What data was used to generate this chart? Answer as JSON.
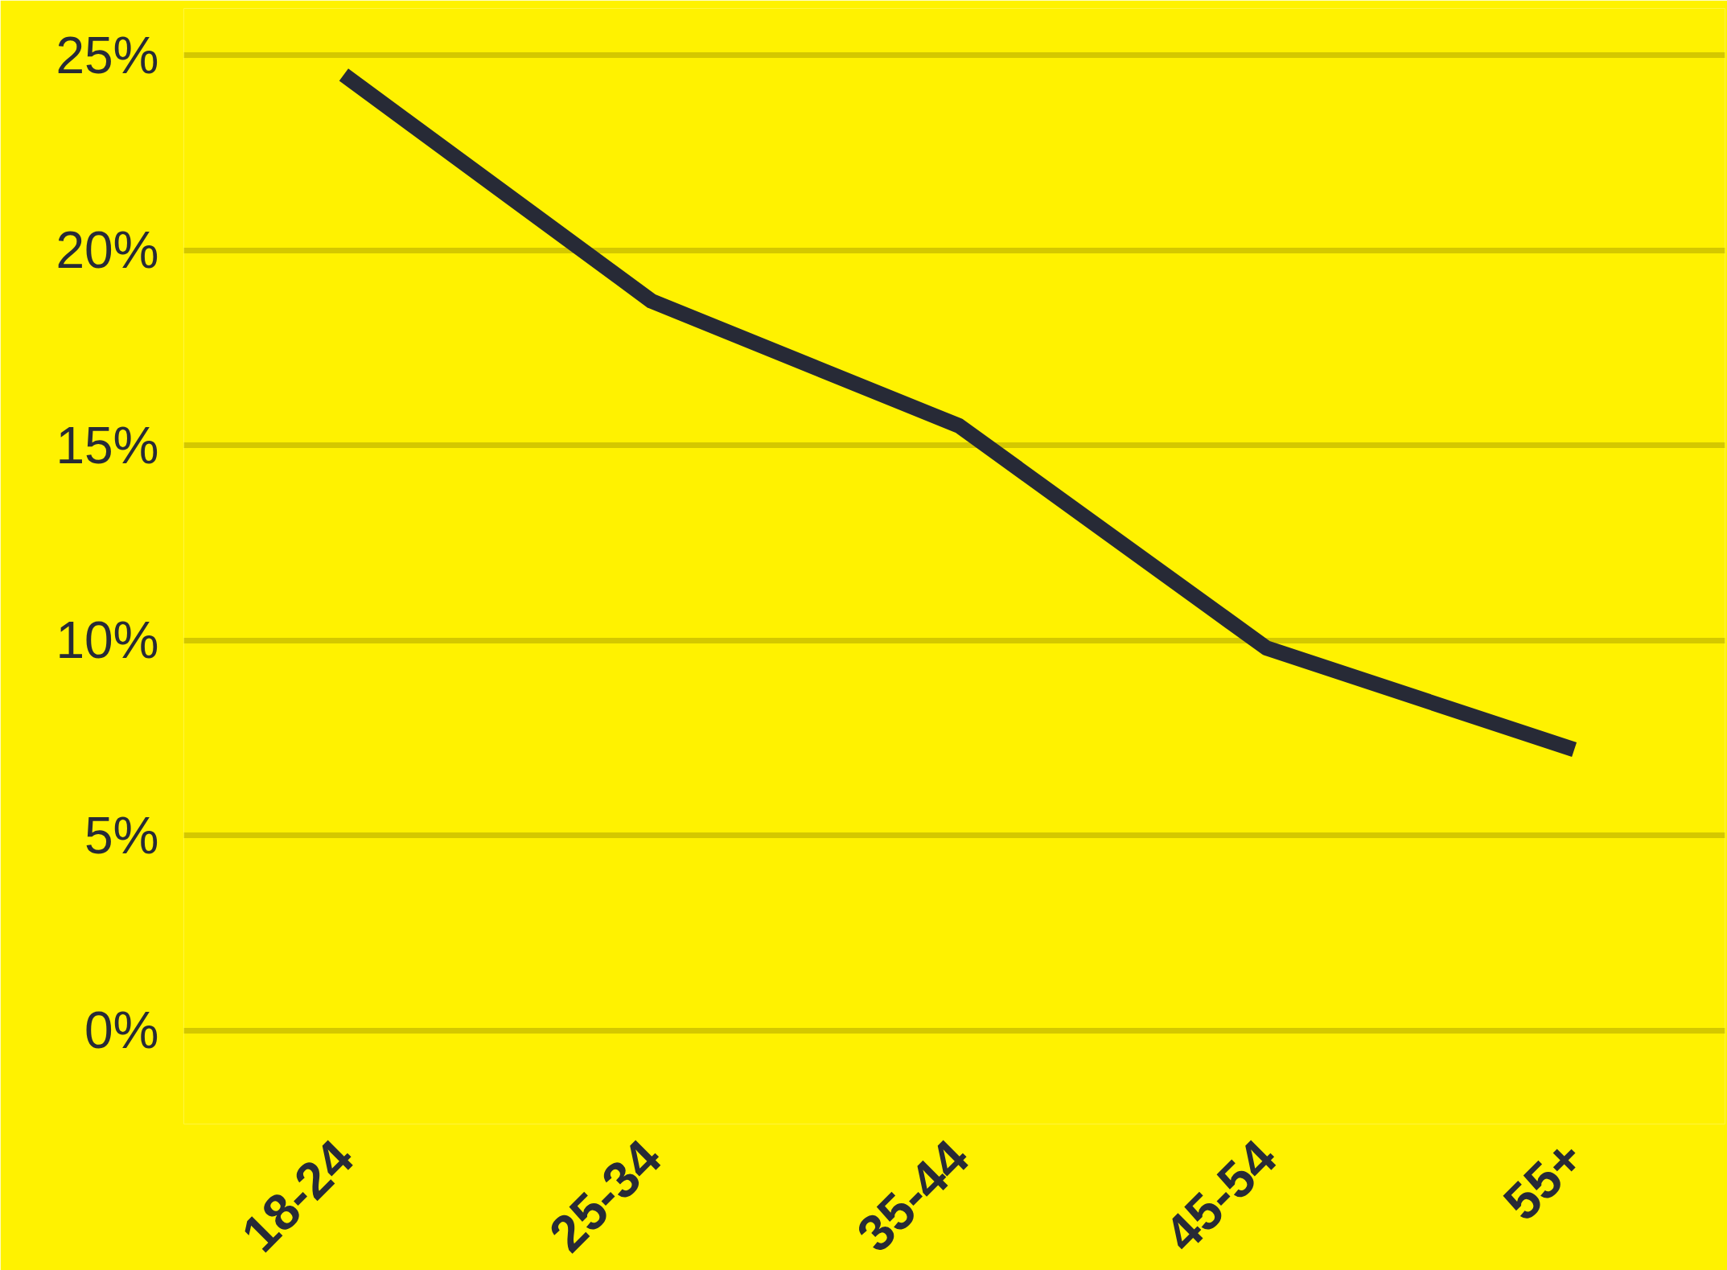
{
  "chart_data": {
    "type": "line",
    "categories": [
      "18-24",
      "25-34",
      "35-44",
      "45-54",
      "55+"
    ],
    "series": [
      {
        "color": "#272a36",
        "values": [
          24.5,
          18.7,
          15.5,
          9.8,
          7.2
        ]
      }
    ],
    "ylim": [
      -2.4,
      26.2
    ],
    "yticks": [
      {
        "value": 0,
        "label": "0%"
      },
      {
        "value": 5,
        "label": "5%"
      },
      {
        "value": 10,
        "label": "10%"
      },
      {
        "value": 15,
        "label": "15%"
      },
      {
        "value": 20,
        "label": "20%"
      },
      {
        "value": 25,
        "label": "25%"
      }
    ],
    "grid": "y",
    "marker": "none",
    "line_style": "solid"
  }
}
